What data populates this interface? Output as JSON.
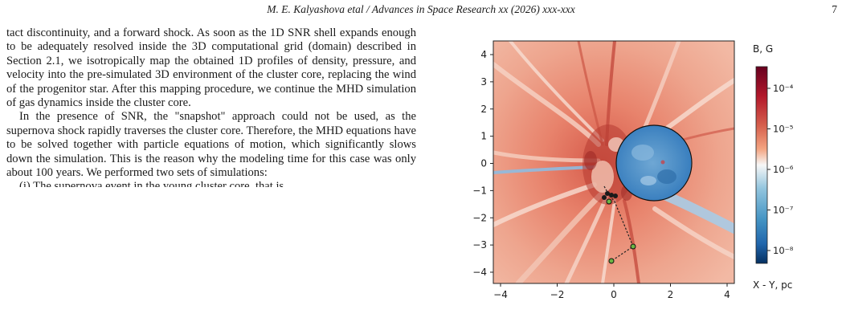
{
  "header": {
    "running_head": "M. E. Kalyashova etal / Advances in Space Research xx (2026) xxx-xxx",
    "page_number": "7"
  },
  "body": {
    "paragraphs": [
      "tact discontinuity, and a forward shock. As soon as the 1D SNR shell expands enough to be adequately resolved inside the 3D computational grid (domain) described in Section 2.1, we isotropically map the obtained 1D profiles of density, pressure, and velocity into the pre-simulated 3D environment of the cluster core, replacing the wind of the progenitor star. After this mapping procedure, we continue the MHD simulation of gas dynamics inside the cluster core.",
      "In the presence of SNR, the \"snapshot\" approach could not be used, as the supernova shock rapidly traverses the cluster core. Therefore, the MHD equations have to be solved together with particle equations of motion, which significantly slows down the simulation. This is the reason why the modeling time for this case was only about 100 years. We performed two sets of simulations:",
      "(i) The supernova event in the young cluster core, that is,"
    ]
  },
  "figure": {
    "colorbar_label": "B, G",
    "axis_caption": "X - Y, pc",
    "x_ticks": [
      "−4",
      "−2",
      "0",
      "2",
      "4"
    ],
    "y_ticks": [
      "4",
      "3",
      "2",
      "1",
      "0",
      "−1",
      "−2",
      "−3",
      "−4"
    ],
    "colorbar_ticks": [
      "10⁻⁴",
      "10⁻⁵",
      "10⁻⁶",
      "10⁻⁷",
      "10⁻⁸"
    ],
    "colors": {
      "high_field": "#67001f",
      "mid_field": "#f7f7f7",
      "low_field": "#053061",
      "map_red": "#e07a5f",
      "map_blue": "#4f8ec4"
    }
  }
}
